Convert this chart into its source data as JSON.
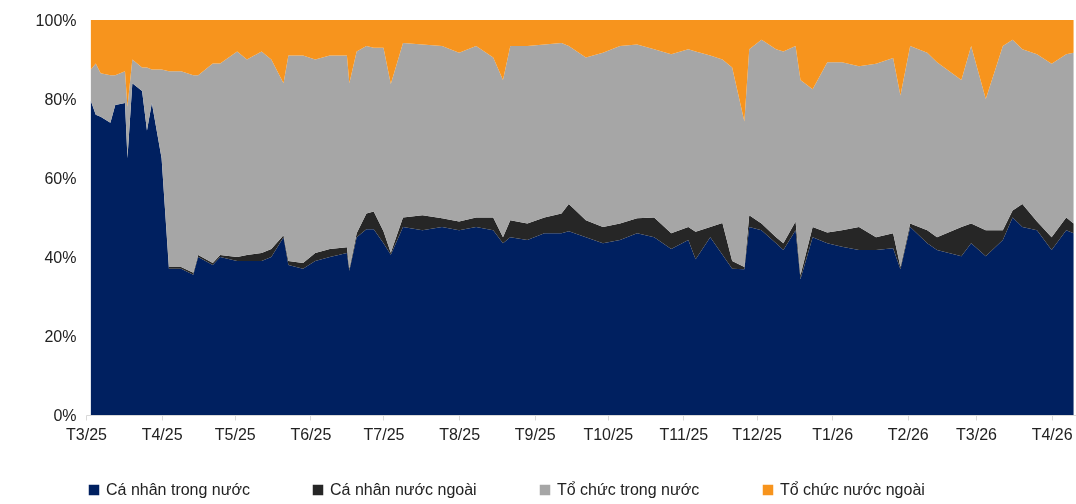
{
  "chart_data": {
    "type": "area",
    "stacked": true,
    "x": [
      "2025-03-03",
      "2025-03-05",
      "2025-03-07",
      "2025-03-11",
      "2025-03-13",
      "2025-03-17",
      "2025-03-18",
      "2025-03-20",
      "2025-03-24",
      "2025-03-26",
      "2025-03-28",
      "2025-04-01",
      "2025-04-04",
      "2025-04-09",
      "2025-04-14",
      "2025-04-16",
      "2025-04-22",
      "2025-04-25",
      "2025-05-02",
      "2025-05-06",
      "2025-05-12",
      "2025-05-16",
      "2025-05-21",
      "2025-05-23",
      "2025-05-29",
      "2025-06-03",
      "2025-06-09",
      "2025-06-16",
      "2025-06-17",
      "2025-06-20",
      "2025-06-24",
      "2025-06-27",
      "2025-07-01",
      "2025-07-04",
      "2025-07-09",
      "2025-07-17",
      "2025-07-25",
      "2025-08-01",
      "2025-08-08",
      "2025-08-15",
      "2025-08-19",
      "2025-08-22",
      "2025-08-29",
      "2025-09-05",
      "2025-09-12",
      "2025-09-15",
      "2025-09-22",
      "2025-09-29",
      "2025-10-06",
      "2025-10-13",
      "2025-10-20",
      "2025-10-27",
      "2025-11-03",
      "2025-11-06",
      "2025-11-12",
      "2025-11-17",
      "2025-11-21",
      "2025-11-26",
      "2025-11-28",
      "2025-12-03",
      "2025-12-09",
      "2025-12-12",
      "2025-12-17",
      "2025-12-19",
      "2025-12-24",
      "2025-12-30",
      "2026-01-05",
      "2026-01-12",
      "2026-01-19",
      "2026-01-26",
      "2026-01-29",
      "2026-02-02",
      "2026-02-09",
      "2026-02-13",
      "2026-02-23",
      "2026-02-27",
      "2026-03-05",
      "2026-03-12",
      "2026-03-16",
      "2026-03-20",
      "2026-03-26",
      "2026-04-01",
      "2026-04-07",
      "2026-04-10"
    ],
    "series": [
      {
        "name": "Cá nhân trong nước",
        "color": "#002060",
        "values": [
          79.5,
          76,
          75.5,
          74,
          78.5,
          79,
          65,
          84,
          82,
          72,
          79,
          65,
          37,
          37,
          35.5,
          40,
          38,
          40,
          39,
          39,
          39,
          40,
          45,
          38,
          37,
          39,
          40,
          41,
          36.5,
          45,
          47,
          47,
          43.5,
          40.6,
          47.6,
          46.8,
          47.6,
          46.8,
          47.6,
          46.8,
          43.5,
          45,
          44.3,
          46,
          46,
          46.5,
          45,
          43.5,
          44.3,
          46,
          45,
          42,
          44.3,
          39.4,
          45,
          40.6,
          37,
          36.9,
          47.6,
          46.8,
          43.5,
          41.8,
          46.8,
          34.4,
          45,
          43.5,
          42.6,
          41.8,
          41.8,
          42.2,
          36.9,
          47.6,
          43.5,
          41.8,
          40.2,
          43.5,
          40.2,
          44.3,
          50,
          47.6,
          46.8,
          41.8,
          46.8,
          46
        ]
      },
      {
        "name": "Cá nhân nước ngoài",
        "color": "#262626",
        "values": [
          0,
          0,
          0,
          0,
          0,
          0,
          0,
          0,
          0,
          0,
          0,
          0,
          0.5,
          0.5,
          0.5,
          0.5,
          0.5,
          0.5,
          1,
          1.5,
          2,
          2,
          0.5,
          1,
          1.5,
          2,
          2,
          1.5,
          0.5,
          1,
          4,
          4.5,
          3,
          0.5,
          2.4,
          3.8,
          2.2,
          2.2,
          2.4,
          3.2,
          1.5,
          4.3,
          4.2,
          4,
          5,
          6.9,
          4.3,
          4.1,
          4.2,
          3.8,
          5,
          4,
          3.3,
          7,
          2.6,
          8,
          2,
          0.6,
          3,
          1.7,
          1.5,
          1.7,
          2.2,
          1,
          2.6,
          2.7,
          4.2,
          5.8,
          3.2,
          3.8,
          0.6,
          0.9,
          3.3,
          3.2,
          7.4,
          5,
          6.6,
          2.5,
          1.8,
          5.8,
          2.2,
          3.2,
          3.2,
          2.5
        ]
      },
      {
        "name": "Tổ chức trong nước",
        "color": "#a6a6a6",
        "values": [
          8,
          13,
          11,
          12,
          7.5,
          8,
          13,
          6,
          6,
          16,
          8.5,
          22.5,
          49.5,
          49.5,
          50,
          45.5,
          50.5,
          48.5,
          52,
          49.5,
          51,
          48,
          38.5,
          52,
          52.5,
          49,
          49,
          48.5,
          47,
          46,
          42.4,
          41.5,
          46.5,
          42.7,
          44.2,
          43.2,
          43.6,
          42.7,
          43.4,
          40.5,
          39.8,
          44.1,
          44.9,
          43.8,
          43.2,
          40,
          41.2,
          44.1,
          44.9,
          44,
          42.6,
          45.3,
          45,
          45.6,
          43.4,
          41.4,
          49,
          36.8,
          42,
          46.5,
          47.6,
          48.5,
          44.4,
          49.4,
          34.9,
          43.1,
          42.5,
          40.7,
          43.9,
          44.4,
          43.4,
          44.9,
          44.9,
          44.3,
          37.2,
          44.9,
          33.2,
          46.6,
          43.2,
          39.2,
          42.3,
          43.9,
          41.3,
          43.2
        ]
      },
      {
        "name": "Tổ chức nước ngoài",
        "color": "#f7941d",
        "values": [
          12.5,
          11,
          13.5,
          14,
          14,
          13,
          22,
          10,
          12,
          12,
          12.5,
          12.5,
          13,
          13,
          14,
          14,
          11,
          11,
          8,
          10,
          8,
          10,
          16,
          9,
          9,
          10,
          9,
          9,
          16,
          8,
          6.6,
          7,
          7,
          16.2,
          5.8,
          6.2,
          6.6,
          8.3,
          6.6,
          9.5,
          15.2,
          6.6,
          6.6,
          6.2,
          5.8,
          6.6,
          9.5,
          8.3,
          6.6,
          6.2,
          7.4,
          8.7,
          7.4,
          8,
          9,
          10,
          12,
          25.7,
          7.4,
          5,
          7.4,
          8,
          6.6,
          15.2,
          17.5,
          10.7,
          10.7,
          11.7,
          11.1,
          9.6,
          19.1,
          6.6,
          8.3,
          10.7,
          15.2,
          6.6,
          20,
          6.6,
          5,
          7.4,
          8.7,
          11.1,
          8.7,
          8.3
        ]
      }
    ],
    "xlim": [
      "2025-03-01",
      "2026-04-11"
    ],
    "xticks": [
      {
        "value": "2025-03-01",
        "label": "T3/25"
      },
      {
        "value": "2025-04-01",
        "label": "T4/25"
      },
      {
        "value": "2025-05-01",
        "label": "T5/25"
      },
      {
        "value": "2025-06-01",
        "label": "T6/25"
      },
      {
        "value": "2025-07-01",
        "label": "T7/25"
      },
      {
        "value": "2025-08-01",
        "label": "T8/25"
      },
      {
        "value": "2025-09-01",
        "label": "T9/25"
      },
      {
        "value": "2025-10-01",
        "label": "T10/25"
      },
      {
        "value": "2025-11-01",
        "label": "T11/25"
      },
      {
        "value": "2025-12-01",
        "label": "T12/25"
      },
      {
        "value": "2026-01-01",
        "label": "T1/26"
      },
      {
        "value": "2026-02-01",
        "label": "T2/26"
      },
      {
        "value": "2026-03-01",
        "label": "T3/26"
      },
      {
        "value": "2026-04-01",
        "label": "T4/26"
      }
    ],
    "ylim": [
      0,
      100
    ],
    "yticks": [
      {
        "value": 0,
        "label": "0%"
      },
      {
        "value": 20,
        "label": "20%"
      },
      {
        "value": 40,
        "label": "40%"
      },
      {
        "value": 60,
        "label": "60%"
      },
      {
        "value": 80,
        "label": "80%"
      },
      {
        "value": 100,
        "label": "100%"
      }
    ],
    "legend": "bottom",
    "grid": false
  }
}
